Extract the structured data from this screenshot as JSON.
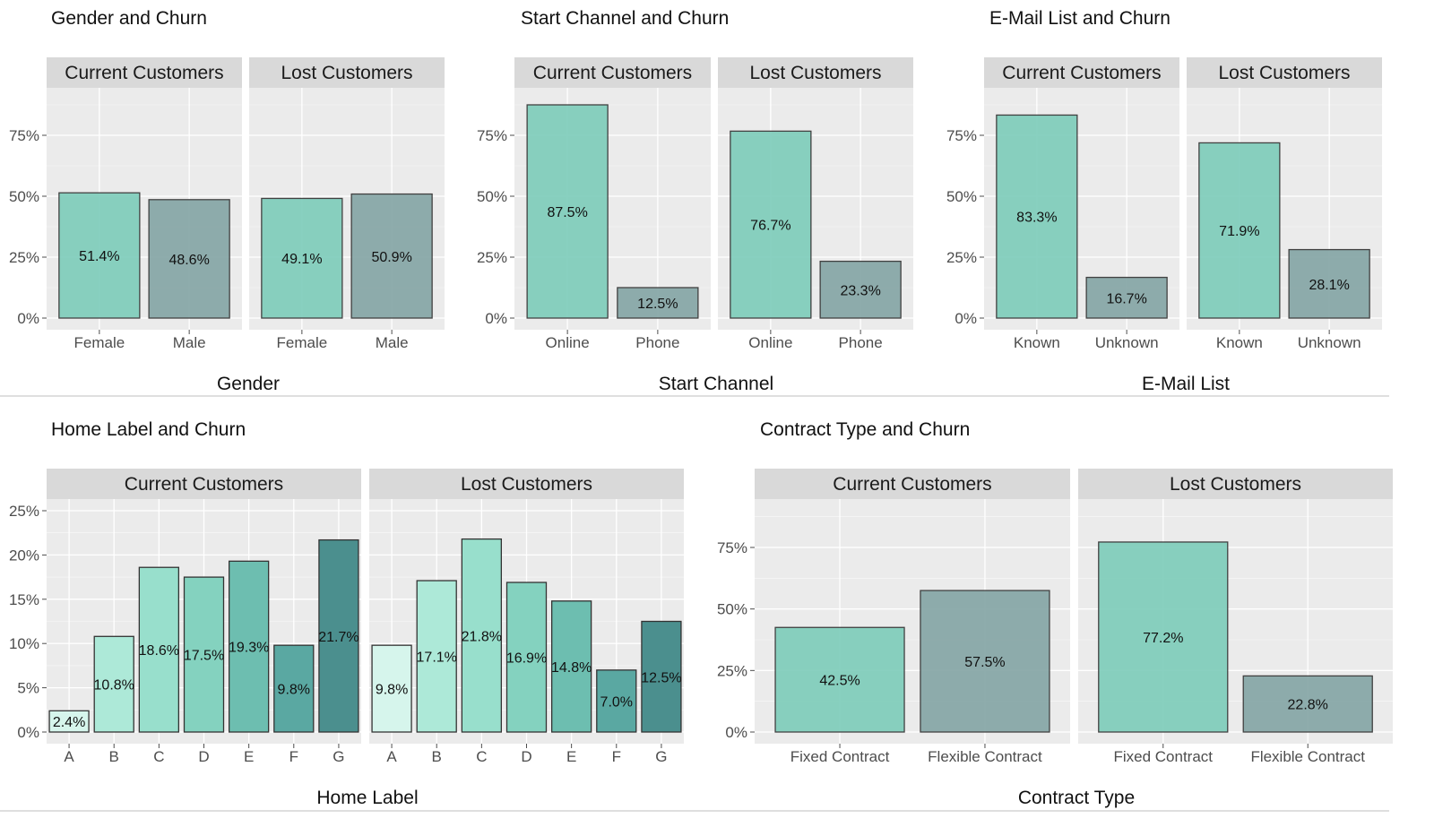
{
  "colors": {
    "panel_bg": "#ebebeb",
    "strip_bg": "#d9d9d9",
    "grid": "#ffffff",
    "bar_current_first": "#7fcdbb",
    "bar_second": "#86a6a6",
    "bar_edge": "#333333",
    "home_scale": [
      "#d6f5ec",
      "#ade9d8",
      "#98dfcc",
      "#84d2bf",
      "#6dbeb0",
      "#5aa8a2",
      "#4b8f8e"
    ],
    "divider": "#cccccc"
  },
  "facet_labels": [
    "Current Customers",
    "Lost Customers"
  ],
  "chart_data": [
    {
      "type": "bar",
      "title": "Gender and Churn",
      "xlabel": "Gender",
      "ylabel": "",
      "categories": [
        "Female",
        "Male"
      ],
      "yticks": [
        "0%",
        "25%",
        "50%",
        "75%"
      ],
      "ylim": [
        0,
        0.85
      ],
      "facets": [
        {
          "name": "Current Customers",
          "values": [
            0.514,
            0.486
          ],
          "labels": [
            "51.4%",
            "48.6%"
          ]
        },
        {
          "name": "Lost Customers",
          "values": [
            0.491,
            0.509
          ],
          "labels": [
            "49.1%",
            "50.9%"
          ]
        }
      ]
    },
    {
      "type": "bar",
      "title": "Start Channel and Churn",
      "xlabel": "Start Channel",
      "ylabel": "",
      "categories": [
        "Online",
        "Phone"
      ],
      "yticks": [
        "0%",
        "25%",
        "50%",
        "75%"
      ],
      "ylim": [
        0,
        0.92
      ],
      "facets": [
        {
          "name": "Current Customers",
          "values": [
            0.875,
            0.125
          ],
          "labels": [
            "87.5%",
            "12.5%"
          ]
        },
        {
          "name": "Lost Customers",
          "values": [
            0.767,
            0.233
          ],
          "labels": [
            "76.7%",
            "23.3%"
          ]
        }
      ]
    },
    {
      "type": "bar",
      "title": "E-Mail List and Churn",
      "xlabel": "E-Mail List",
      "ylabel": "",
      "categories": [
        "Known",
        "Unknown"
      ],
      "yticks": [
        "0%",
        "25%",
        "50%",
        "75%"
      ],
      "ylim": [
        0,
        0.92
      ],
      "facets": [
        {
          "name": "Current Customers",
          "values": [
            0.833,
            0.167
          ],
          "labels": [
            "83.3%",
            "16.7%"
          ]
        },
        {
          "name": "Lost Customers",
          "values": [
            0.719,
            0.281
          ],
          "labels": [
            "71.9%",
            "28.1%"
          ]
        }
      ]
    },
    {
      "type": "bar",
      "title": "Home Label and Churn",
      "xlabel": "Home Label",
      "ylabel": "",
      "categories": [
        "A",
        "B",
        "C",
        "D",
        "E",
        "F",
        "G"
      ],
      "yticks": [
        "0%",
        "5%",
        "10%",
        "15%",
        "20%",
        "25%"
      ],
      "ylim": [
        0,
        0.25
      ],
      "facets": [
        {
          "name": "Current Customers",
          "values": [
            0.024,
            0.108,
            0.186,
            0.175,
            0.193,
            0.098,
            0.217
          ],
          "labels": [
            "2.4%",
            "10.8%",
            "18.6%",
            "17.5%",
            "19.3%",
            "9.8%",
            "21.7%"
          ]
        },
        {
          "name": "Lost Customers",
          "values": [
            0.098,
            0.171,
            0.218,
            0.169,
            0.148,
            0.07,
            0.125
          ],
          "labels": [
            "9.8%",
            "17.1%",
            "21.8%",
            "16.9%",
            "14.8%",
            "7.0%",
            "12.5%"
          ]
        }
      ]
    },
    {
      "type": "bar",
      "title": "Contract Type and Churn",
      "xlabel": "Contract Type",
      "ylabel": "",
      "categories": [
        "Fixed Contract",
        "Flexible Contract"
      ],
      "yticks": [
        "0%",
        "25%",
        "50%",
        "75%"
      ],
      "ylim": [
        0,
        0.82
      ],
      "facets": [
        {
          "name": "Current Customers",
          "values": [
            0.425,
            0.575
          ],
          "labels": [
            "42.5%",
            "57.5%"
          ]
        },
        {
          "name": "Lost Customers",
          "values": [
            0.772,
            0.228
          ],
          "labels": [
            "77.2%",
            "22.8%"
          ]
        }
      ]
    }
  ]
}
